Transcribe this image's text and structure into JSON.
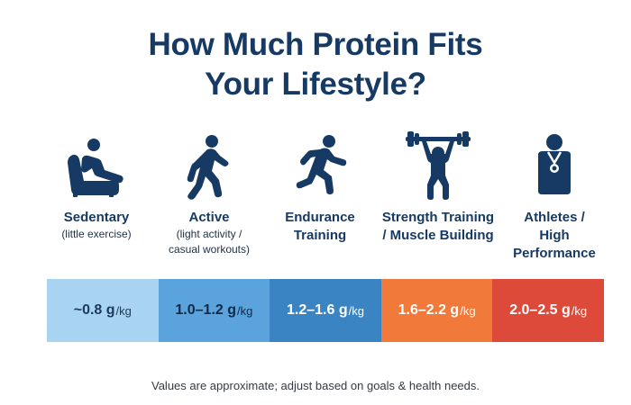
{
  "title": {
    "line1": "How Much Protein Fits",
    "line2": "Your Lifestyle?"
  },
  "categories": [
    {
      "label1": "Sedentary",
      "label2": "",
      "label3": "",
      "sub1": "(little exercise)",
      "sub2": "",
      "icon": "reclining-person-icon"
    },
    {
      "label1": "Active",
      "label2": "",
      "label3": "",
      "sub1": "(light activity /",
      "sub2": "casual workouts)",
      "icon": "walking-person-icon"
    },
    {
      "label1": "Endurance",
      "label2": "Training",
      "label3": "",
      "sub1": "",
      "sub2": "",
      "icon": "running-person-icon"
    },
    {
      "label1": "Strength Training",
      "label2": "/ Muscle Building",
      "label3": "",
      "sub1": "",
      "sub2": "",
      "icon": "weightlifter-icon"
    },
    {
      "label1": "Athletes /",
      "label2": "High",
      "label3": "Performance",
      "sub1": "",
      "sub2": "",
      "icon": "medal-athlete-icon"
    }
  ],
  "ranges": [
    {
      "value": "~0.8 g",
      "unit": "/kg",
      "bg": "#a9d4f1",
      "fg": "#1b3a5c"
    },
    {
      "value": "1.0–1.2 g",
      "unit": "/kg",
      "bg": "#5aa3dc",
      "fg": "#0f2a48"
    },
    {
      "value": "1.2–1.6 g",
      "unit": "/kg",
      "bg": "#3b84c4",
      "fg": "#ffffff"
    },
    {
      "value": "1.6–2.2 g",
      "unit": "/kg",
      "bg": "#f17a3b",
      "fg": "#ffffff"
    },
    {
      "value": "2.0–2.5 g",
      "unit": "/kg",
      "bg": "#de4a3a",
      "fg": "#ffffff"
    }
  ],
  "colors": {
    "icon": "#163a63",
    "title": "#163a63"
  },
  "footnote": "Values are approximate; adjust based on goals & health needs."
}
